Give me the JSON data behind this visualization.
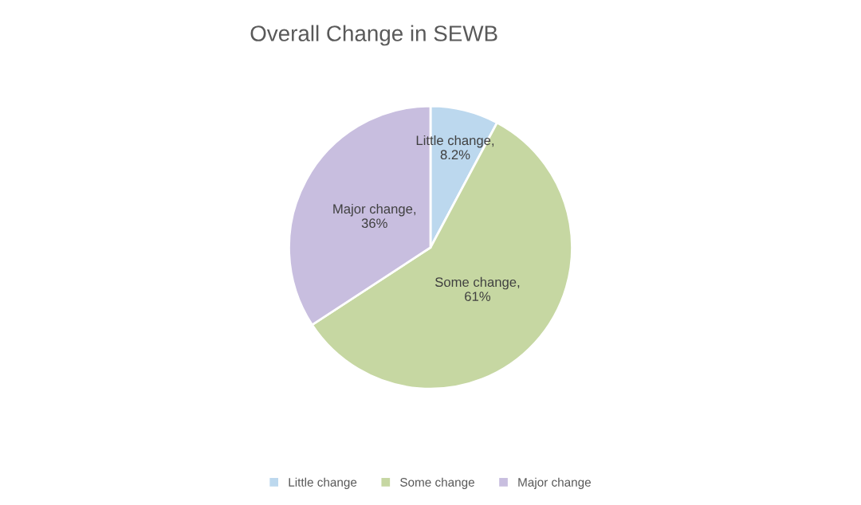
{
  "chart_data": {
    "type": "pie",
    "title": "Overall Change in SEWB",
    "categories": [
      "Little change",
      "Some change",
      "Major change"
    ],
    "values": [
      8.2,
      61,
      36
    ],
    "value_labels": [
      "Little change,\n8.2%",
      "Some change,\n61%",
      "Major change,\n36%"
    ],
    "colors": [
      "#bcd8ee",
      "#c6d7a2",
      "#c8bedf"
    ],
    "legend": "bottom"
  }
}
